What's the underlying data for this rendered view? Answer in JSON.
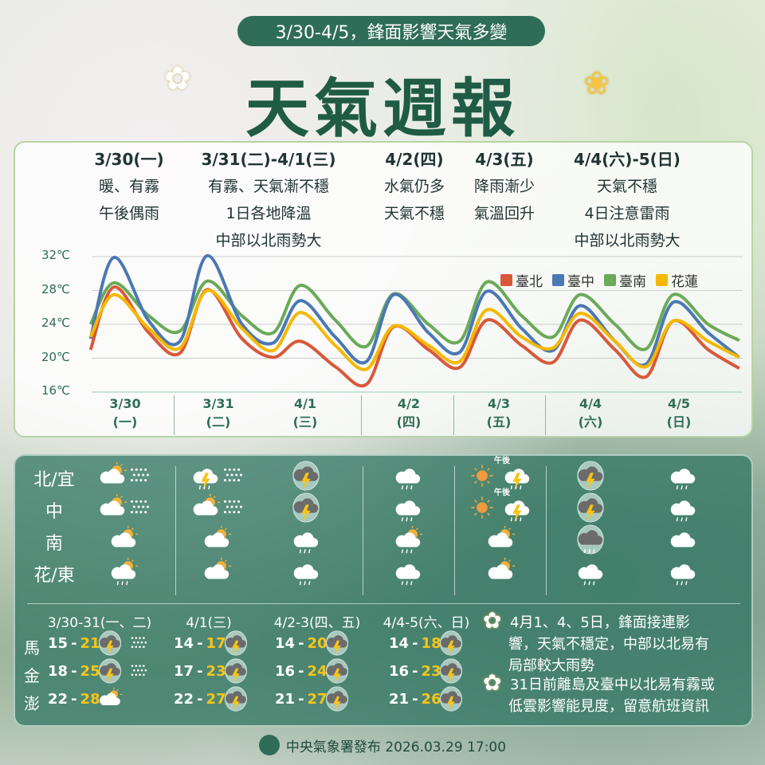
{
  "header": {
    "subtitle": "3/30-4/5，鋒面影響天氣多變",
    "title": "天氣週報"
  },
  "forecast_periods": [
    {
      "title": "3/30(一)",
      "lines": [
        "暖、有霧",
        "午後偶雨"
      ]
    },
    {
      "title": "3/31(二)-4/1(三)",
      "lines": [
        "有霧、天氣漸不穩",
        "1日各地降溫",
        "中部以北雨勢大"
      ]
    },
    {
      "title": "4/2(四)",
      "lines": [
        "水氣仍多",
        "天氣不穩"
      ]
    },
    {
      "title": "4/3(五)",
      "lines": [
        "降雨漸少",
        "氣溫回升"
      ]
    },
    {
      "title": "4/4(六)-5(日)",
      "lines": [
        "天氣不穩",
        "4日注意雷雨",
        "中部以北雨勢大"
      ]
    }
  ],
  "chart_data": {
    "type": "line",
    "y_ticks": [
      "32℃",
      "28℃",
      "24℃",
      "20℃",
      "16℃"
    ],
    "ylim": [
      16,
      32
    ],
    "grid": true,
    "legend_position": "top-right",
    "x_labels": [
      [
        "3/30",
        "(一)"
      ],
      [
        "3/31",
        "(二)"
      ],
      [
        "4/1",
        "(三)"
      ],
      [
        "4/2",
        "(四)"
      ],
      [
        "4/3",
        "(五)"
      ],
      [
        "4/4",
        "(六)"
      ],
      [
        "4/5",
        "(日)"
      ]
    ],
    "x": [
      "3/30 03:00",
      "3/30 09:00",
      "3/30 18:00",
      "3/31 02:00",
      "3/31 09:00",
      "3/31 18:00",
      "4/1 02:00",
      "4/1 09:00",
      "4/1 18:00",
      "4/2 02:00",
      "4/2 09:00",
      "4/2 18:00",
      "4/3 02:00",
      "4/3 09:00",
      "4/3 18:00",
      "4/4 02:00",
      "4/4 09:00",
      "4/4 18:00",
      "4/5 02:00",
      "4/5 09:00",
      "4/5 18:00",
      "4/6 02:00"
    ],
    "series": [
      {
        "name": "臺北",
        "color": "#d9583a",
        "values": [
          21,
          28.4,
          23,
          20.6,
          28.1,
          22.3,
          20.1,
          22,
          19,
          16.9,
          23.7,
          21,
          18.9,
          24.5,
          21.5,
          19.5,
          24.5,
          21,
          17.8,
          24.4,
          21,
          18.8
        ]
      },
      {
        "name": "臺中",
        "color": "#4a78b5",
        "values": [
          22.3,
          31.9,
          24.4,
          22,
          32.1,
          24,
          21.8,
          26.8,
          22.5,
          19.6,
          27.5,
          23,
          20.7,
          27.9,
          23.5,
          20.9,
          26.2,
          22,
          19.3,
          26.6,
          23,
          20.1
        ]
      },
      {
        "name": "臺南",
        "color": "#6aaa58",
        "values": [
          24,
          28.9,
          25,
          23.2,
          29.1,
          25,
          23,
          28.6,
          24.5,
          21.4,
          27.6,
          24,
          22,
          29,
          25,
          22.5,
          27.5,
          24,
          21.1,
          27.5,
          24,
          22.1
        ]
      },
      {
        "name": "花蓮",
        "color": "#f5b800",
        "values": [
          22.5,
          27.5,
          23.5,
          21.2,
          28,
          23.5,
          20.9,
          25.4,
          21.5,
          18.7,
          23.8,
          21.5,
          19.6,
          25.7,
          22.5,
          21.2,
          25.3,
          22,
          19,
          24.4,
          22,
          20.1
        ]
      }
    ]
  },
  "regions": {
    "labels": [
      "北/宜",
      "中",
      "南",
      "花/東"
    ],
    "afternoon_label": "午後",
    "grid": [
      [
        [
          "partly",
          "fog"
        ],
        [
          "thunder-shower",
          "fog"
        ],
        [
          "storm-circle"
        ],
        [
          "rain"
        ],
        [
          "sun",
          "thunder-shower"
        ],
        [
          "storm-circle"
        ],
        [
          "rain"
        ]
      ],
      [
        [
          "partly",
          "fog"
        ],
        [
          "partly",
          "fog"
        ],
        [
          "storm-circle"
        ],
        [
          "rain"
        ],
        [
          "sun",
          "thunder-shower"
        ],
        [
          "storm-circle"
        ],
        [
          "rain"
        ]
      ],
      [
        [
          "partly"
        ],
        [
          "partly"
        ],
        [
          "rain"
        ],
        [
          "partly-rain"
        ],
        [
          "partly"
        ],
        [
          "rain-circle"
        ],
        [
          "cloud"
        ]
      ],
      [
        [
          "partly-rain"
        ],
        [
          "partly"
        ],
        [
          "rain"
        ],
        [
          "rain"
        ],
        [
          "partly"
        ],
        [
          "rain"
        ],
        [
          "rain"
        ]
      ]
    ]
  },
  "islands": {
    "periods": [
      "3/30-31(一、二)",
      "4/1(三)",
      "4/2-3(四、五)",
      "4/4-5(六、日)"
    ],
    "rows": [
      {
        "name": "馬",
        "cells": [
          {
            "low": "15",
            "high": "21",
            "icons": [
              "storm-circle",
              "fog"
            ]
          },
          {
            "low": "14",
            "high": "17",
            "icons": [
              "storm-circle"
            ]
          },
          {
            "low": "14",
            "high": "20",
            "icons": [
              "storm-circle"
            ]
          },
          {
            "low": "14",
            "high": "18",
            "icons": [
              "storm-circle"
            ]
          }
        ]
      },
      {
        "name": "金",
        "cells": [
          {
            "low": "18",
            "high": "25",
            "icons": [
              "storm-circle",
              "fog"
            ]
          },
          {
            "low": "17",
            "high": "23",
            "icons": [
              "storm-circle"
            ]
          },
          {
            "low": "16",
            "high": "24",
            "icons": [
              "storm-circle"
            ]
          },
          {
            "low": "16",
            "high": "23",
            "icons": [
              "storm-circle"
            ]
          }
        ]
      },
      {
        "name": "澎",
        "cells": [
          {
            "low": "22",
            "high": "28",
            "icons": [
              "partly"
            ]
          },
          {
            "low": "22",
            "high": "27",
            "icons": [
              "storm-circle"
            ]
          },
          {
            "low": "21",
            "high": "27",
            "icons": [
              "storm-circle"
            ]
          },
          {
            "low": "21",
            "high": "26",
            "icons": [
              "storm-circle"
            ]
          }
        ]
      }
    ]
  },
  "notes": [
    [
      "4月1、4、5日，鋒面接連影",
      "響，天氣不穩定，中部以北易有",
      "局部較大雨勢"
    ],
    [
      "31日前離島及臺中以北易有霧或",
      "低雲影響能見度，留意航班資訊"
    ]
  ],
  "footer": {
    "text": "中央氣象署發布 2026.03.29 17:00"
  }
}
